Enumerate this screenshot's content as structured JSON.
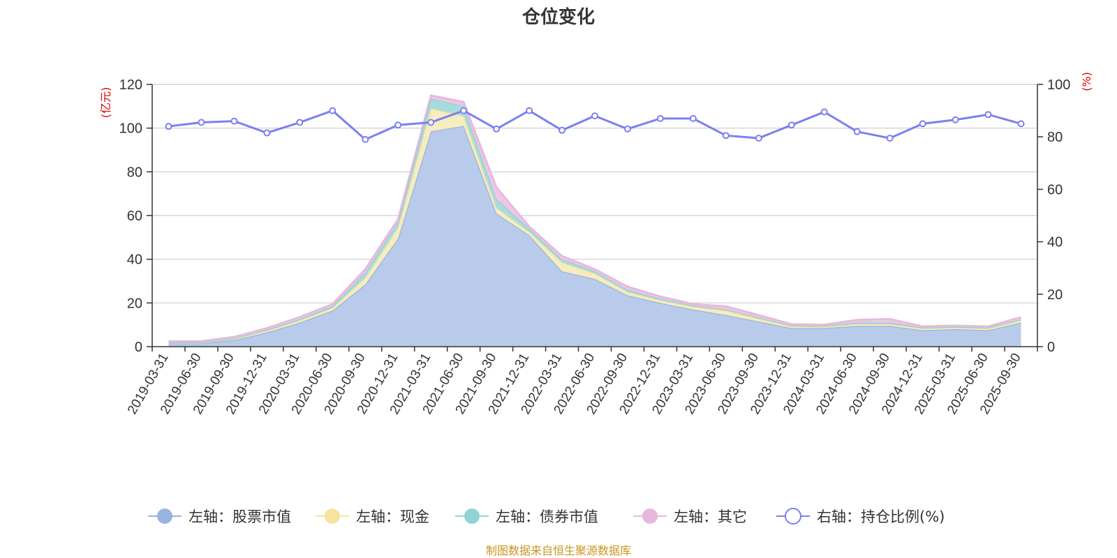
{
  "chart_data": {
    "type": "area",
    "title": "仓位变化",
    "left_unit": "(亿元)",
    "right_unit": "(%)",
    "left_ylim": [
      0,
      120
    ],
    "left_ticks": [
      "0",
      "20",
      "40",
      "60",
      "80",
      "100",
      "120"
    ],
    "right_ylim": [
      0,
      100
    ],
    "right_ticks": [
      "0",
      "20",
      "40",
      "60",
      "80",
      "100"
    ],
    "grid": true,
    "legend_position": "bottom",
    "source": "制图数据来自恒生聚源数据库",
    "categories": [
      "2019-03-31",
      "2019-06-30",
      "2019-09-30",
      "2019-12-31",
      "2020-03-31",
      "2020-06-30",
      "2020-09-30",
      "2020-12-31",
      "2021-03-31",
      "2021-06-30",
      "2021-09-30",
      "2021-12-31",
      "2022-03-31",
      "2022-06-30",
      "2022-09-30",
      "2022-12-31",
      "2023-03-31",
      "2023-06-30",
      "2023-09-30",
      "2023-12-31",
      "2024-03-31",
      "2024-06-30",
      "2024-09-30",
      "2024-12-31",
      "2025-03-31",
      "2025-06-30",
      "2025-09-30"
    ],
    "stacked_series": [
      {
        "name": "左轴：股票市值",
        "axis": "left",
        "color": "#9ab3e0",
        "fill": "#b8cbea",
        "values": [
          1.5,
          1.5,
          3,
          6.5,
          11,
          16.5,
          28.5,
          49.5,
          98.5,
          101,
          61,
          51,
          34.5,
          31,
          23.5,
          20,
          17,
          14.5,
          11.5,
          8.5,
          8.5,
          9.5,
          9.5,
          7.5,
          8,
          7.5,
          11
        ]
      },
      {
        "name": "左轴：现金",
        "axis": "left",
        "color": "#f6e3a0",
        "fill": "#f7ecbe",
        "values": [
          0.3,
          0.3,
          0.5,
          0.8,
          1,
          1.2,
          3,
          5,
          10.5,
          4.5,
          2.5,
          1.5,
          4,
          2.5,
          1.5,
          1.2,
          1.3,
          2,
          1.3,
          0.8,
          0.6,
          0.8,
          0.8,
          0.8,
          0.7,
          0.8,
          1
        ]
      },
      {
        "name": "左轴：债券市值",
        "axis": "left",
        "color": "#8fd3d3",
        "fill": "#a8dcdc",
        "values": [
          0.2,
          0.2,
          0.3,
          0.4,
          0.6,
          0.8,
          2.5,
          2.5,
          4.5,
          4.5,
          4,
          1.5,
          1.5,
          1,
          1,
          0.8,
          0.5,
          0.5,
          0.5,
          0.4,
          0.4,
          0.7,
          0.7,
          0.4,
          0.4,
          0.4,
          0.5
        ]
      },
      {
        "name": "左轴：其它",
        "axis": "left",
        "color": "#e6b7dc",
        "fill": "#edc6e5",
        "values": [
          0.5,
          0.5,
          0.7,
          0.8,
          1,
          1,
          1.5,
          1.5,
          1.5,
          2,
          5.5,
          1,
          1.5,
          1,
          1.5,
          1,
          0.7,
          1.5,
          1.2,
          0.6,
          0.6,
          1.3,
          1.7,
          0.6,
          0.6,
          0.6,
          1
        ]
      }
    ],
    "line_series": {
      "name": "右轴：持仓比例(%)",
      "axis": "right",
      "color": "#7a80f0",
      "values": [
        84,
        85.5,
        86,
        81.5,
        85.5,
        90,
        79,
        84.5,
        85.5,
        90,
        83,
        90,
        82.5,
        88,
        83,
        87,
        87,
        80.5,
        79.5,
        84.5,
        89.5,
        82,
        79.5,
        85,
        86.5,
        88.5,
        85
      ]
    }
  }
}
